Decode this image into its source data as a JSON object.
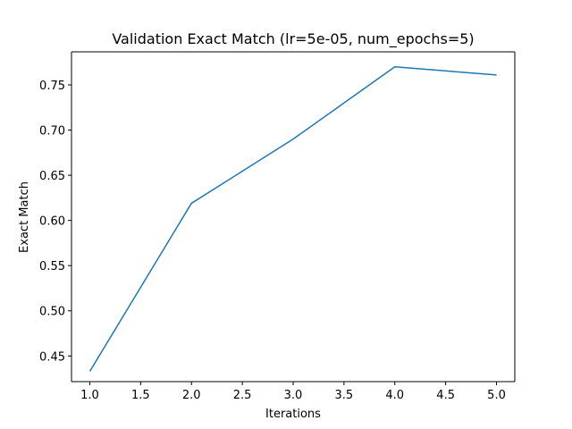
{
  "chart_data": {
    "type": "line",
    "title": "Validation Exact Match (lr=5e-05, num_epochs=5)",
    "xlabel": "Iterations",
    "ylabel": "Exact Match",
    "x": [
      1.0,
      2.0,
      3.0,
      4.0,
      5.0
    ],
    "series": [
      {
        "values": [
          0.433,
          0.619,
          0.69,
          0.77,
          0.761
        ],
        "color": "#1f77b4"
      }
    ],
    "xlim": [
      0.82,
      5.18
    ],
    "ylim": [
      0.4216,
      0.7866
    ],
    "xticks": [
      1.0,
      1.5,
      2.0,
      2.5,
      3.0,
      3.5,
      4.0,
      4.5,
      5.0
    ],
    "xtick_labels": [
      "1.0",
      "1.5",
      "2.0",
      "2.5",
      "3.0",
      "3.5",
      "4.0",
      "4.5",
      "5.0"
    ],
    "yticks": [
      0.45,
      0.5,
      0.55,
      0.6,
      0.65,
      0.7,
      0.75
    ],
    "ytick_labels": [
      "0.45",
      "0.50",
      "0.55",
      "0.60",
      "0.65",
      "0.70",
      "0.75"
    ],
    "grid": false,
    "legend": false
  }
}
